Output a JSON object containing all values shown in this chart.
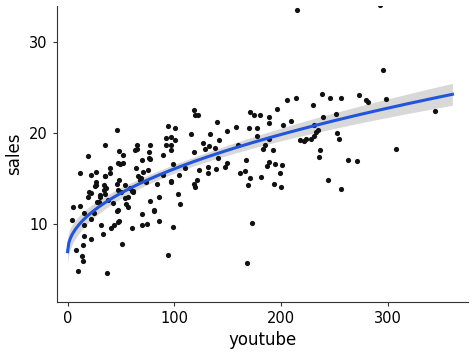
{
  "xlabel": "youtube",
  "ylabel": "sales",
  "xlim": [
    -10,
    375
  ],
  "ylim": [
    1.5,
    34
  ],
  "xticks": [
    0,
    100,
    200,
    300
  ],
  "yticks": [
    10,
    20,
    30
  ],
  "scatter_color": "#111111",
  "scatter_size": 14,
  "line_color": "#2255dd",
  "line_width": 2.2,
  "ci_color": "#aaaaaa",
  "ci_alpha": 0.45,
  "background_color": "#ffffff",
  "seed": 99,
  "n_points": 200,
  "a": 7.0,
  "b": 0.91,
  "noise_std": 3.5,
  "x_max": 360,
  "x_skew": 1.5
}
